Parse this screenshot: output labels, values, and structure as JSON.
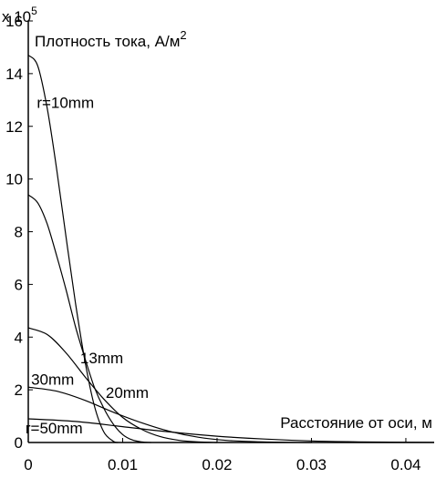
{
  "chart_data": {
    "type": "line",
    "ylabel": "Плотность тока, А/м",
    "ylabel_superscript": "2",
    "xlabel": "Расстояние от оси, м",
    "y_multiplier": "x 10",
    "y_multiplier_exponent": "5",
    "xlim": [
      0,
      0.043
    ],
    "ylim": [
      0,
      16
    ],
    "x_ticks": [
      0,
      0.01,
      0.02,
      0.03,
      0.04
    ],
    "x_tick_labels": [
      "0",
      "0.01",
      "0.02",
      "0.03",
      "0.04"
    ],
    "y_ticks": [
      0,
      2,
      4,
      6,
      8,
      10,
      12,
      14,
      16
    ],
    "y_tick_labels": [
      "0",
      "2",
      "4",
      "6",
      "8",
      "10",
      "12",
      "14",
      "16"
    ],
    "grid": false,
    "series": [
      {
        "name": "r=10mm",
        "x": [
          0,
          0.001,
          0.002,
          0.003,
          0.004,
          0.005,
          0.006,
          0.007,
          0.008,
          0.009,
          0.0095
        ],
        "y": [
          14.7,
          14.3,
          12.7,
          10.4,
          7.8,
          5.3,
          3.1,
          1.4,
          0.4,
          0.05,
          0.0
        ]
      },
      {
        "name": "13mm",
        "x": [
          0,
          0.001,
          0.002,
          0.003,
          0.004,
          0.005,
          0.006,
          0.007,
          0.008,
          0.009,
          0.01,
          0.011,
          0.012,
          0.013
        ],
        "y": [
          9.4,
          9.1,
          8.3,
          7.1,
          5.8,
          4.4,
          3.2,
          2.1,
          1.3,
          0.7,
          0.3,
          0.1,
          0.02,
          0.0
        ]
      },
      {
        "name": "20mm",
        "x": [
          0,
          0.002,
          0.004,
          0.006,
          0.008,
          0.01,
          0.012,
          0.014,
          0.016,
          0.018,
          0.02
        ],
        "y": [
          4.35,
          4.1,
          3.4,
          2.5,
          1.65,
          0.95,
          0.5,
          0.22,
          0.08,
          0.02,
          0.0
        ]
      },
      {
        "name": "30mm",
        "x": [
          0,
          0.003,
          0.006,
          0.009,
          0.012,
          0.015,
          0.018,
          0.021,
          0.024,
          0.027,
          0.03
        ],
        "y": [
          2.1,
          1.95,
          1.6,
          1.15,
          0.75,
          0.42,
          0.2,
          0.08,
          0.03,
          0.01,
          0.0
        ]
      },
      {
        "name": "r=50mm",
        "x": [
          0,
          0.005,
          0.01,
          0.015,
          0.02,
          0.025,
          0.03,
          0.035,
          0.04,
          0.043
        ],
        "y": [
          0.9,
          0.8,
          0.6,
          0.4,
          0.24,
          0.13,
          0.06,
          0.025,
          0.01,
          0.005
        ]
      }
    ],
    "curve_labels": [
      {
        "text": "r=10mm",
        "x": 0.0009,
        "y": 12.7
      },
      {
        "text": "13mm",
        "x": 0.0055,
        "y": 3.0
      },
      {
        "text": "20mm",
        "x": 0.0082,
        "y": 1.7
      },
      {
        "text": "30mm",
        "x": 0.0003,
        "y": 2.2
      },
      {
        "text": "r=50mm",
        "x": -0.0003,
        "y": 0.35
      }
    ]
  }
}
